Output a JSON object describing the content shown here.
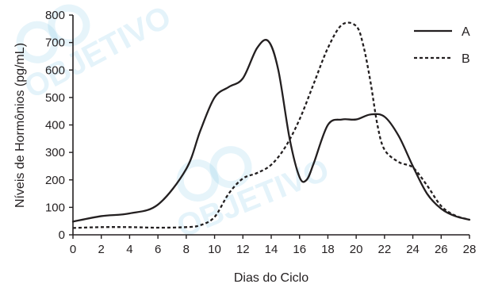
{
  "chart_data": {
    "type": "line",
    "xlabel": "Dias do Ciclo",
    "ylabel": "Níveis de Hormônios (pg/mL)",
    "xlim": [
      0,
      28
    ],
    "ylim": [
      0,
      800
    ],
    "xticks": [
      "0",
      "2",
      "4",
      "6",
      "8",
      "10",
      "12",
      "14",
      "16",
      "18",
      "20",
      "22",
      "24",
      "26",
      "28"
    ],
    "yticks": [
      "0",
      "100",
      "200",
      "300",
      "400",
      "500",
      "600",
      "700",
      "800"
    ],
    "legend_position": "top-right",
    "series": [
      {
        "name": "A",
        "style": "solid",
        "color": "#231f20",
        "points": [
          [
            0,
            48
          ],
          [
            2,
            68
          ],
          [
            4,
            78
          ],
          [
            6,
            110
          ],
          [
            8,
            240
          ],
          [
            9,
            380
          ],
          [
            10,
            500
          ],
          [
            11,
            538
          ],
          [
            12,
            570
          ],
          [
            13,
            680
          ],
          [
            13.8,
            705
          ],
          [
            14.5,
            600
          ],
          [
            15.3,
            350
          ],
          [
            16,
            210
          ],
          [
            16.5,
            200
          ],
          [
            17,
            260
          ],
          [
            18,
            400
          ],
          [
            19,
            420
          ],
          [
            20,
            420
          ],
          [
            21,
            438
          ],
          [
            22,
            430
          ],
          [
            23,
            360
          ],
          [
            24,
            250
          ],
          [
            25,
            150
          ],
          [
            26,
            95
          ],
          [
            27,
            68
          ],
          [
            28,
            55
          ]
        ]
      },
      {
        "name": "B",
        "style": "dashed",
        "color": "#231f20",
        "points": [
          [
            0,
            25
          ],
          [
            2,
            28
          ],
          [
            4,
            28
          ],
          [
            6,
            26
          ],
          [
            8,
            28
          ],
          [
            9,
            35
          ],
          [
            10,
            65
          ],
          [
            11,
            150
          ],
          [
            12,
            205
          ],
          [
            13,
            225
          ],
          [
            14,
            255
          ],
          [
            15,
            320
          ],
          [
            16,
            420
          ],
          [
            17,
            550
          ],
          [
            18,
            680
          ],
          [
            19,
            765
          ],
          [
            20,
            760
          ],
          [
            20.5,
            690
          ],
          [
            21,
            560
          ],
          [
            21.5,
            400
          ],
          [
            22,
            310
          ],
          [
            23,
            265
          ],
          [
            24,
            245
          ],
          [
            25,
            180
          ],
          [
            26,
            105
          ],
          [
            27,
            70
          ],
          [
            28,
            55
          ]
        ]
      }
    ]
  },
  "watermark": {
    "text": "OBJETIVO",
    "color": "#3aa7dc"
  }
}
